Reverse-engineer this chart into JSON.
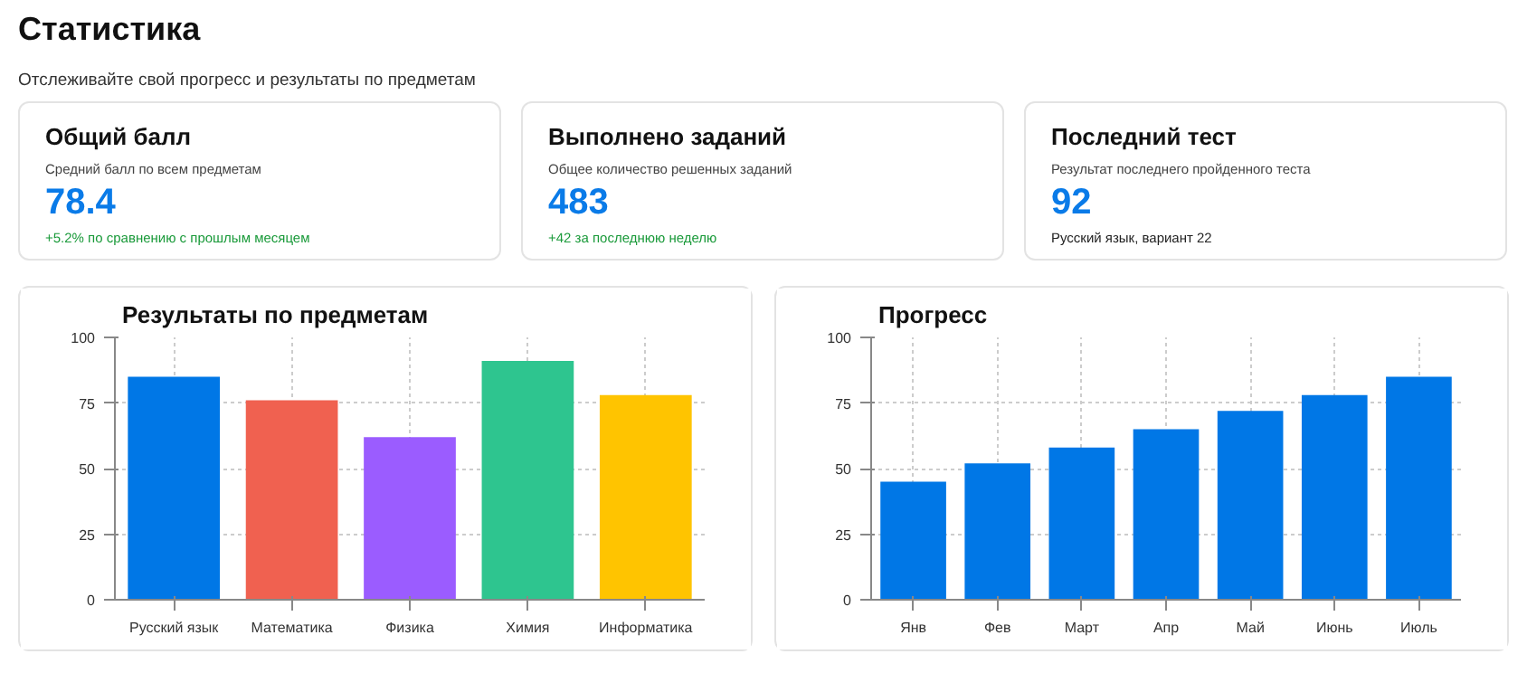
{
  "chart_data": [
    {
      "type": "other",
      "title": "Статистика",
      "subtitle": "Отслеживайте свой прогресс и результаты по предметам"
    },
    {
      "type": "other",
      "title": "Общий балл",
      "subtitle": "Средний балл по всем предметам",
      "annotations": [
        "78.4",
        "+5.2% по сравнению с прошлым месяцем"
      ]
    },
    {
      "type": "other",
      "title": "Выполнено заданий",
      "subtitle": "Общее количество решенных заданий",
      "annotations": [
        "483",
        "+42 за последнюю неделю"
      ]
    },
    {
      "type": "other",
      "title": "Последний тест",
      "subtitle": "Результат последнего пройденного теста",
      "annotations": [
        "92",
        "Русский язык, вариант 22"
      ]
    },
    {
      "type": "bar",
      "title": "Результаты по предметам",
      "categories": [
        "Русский язык",
        "Математика",
        "Физика",
        "Химия",
        "Информатика"
      ],
      "values": [
        85,
        76,
        62,
        91,
        78
      ],
      "colors": [
        "#0077e6",
        "#f06150",
        "#9b5cff",
        "#2ec58f",
        "#ffc400"
      ],
      "ylim": [
        0,
        100
      ],
      "yticks": [
        0,
        25,
        50,
        75,
        100
      ],
      "grid": true
    },
    {
      "type": "bar",
      "title": "Прогресс",
      "categories": [
        "Янв",
        "Фев",
        "Март",
        "Апр",
        "Май",
        "Июнь",
        "Июль"
      ],
      "values": [
        45,
        52,
        58,
        65,
        72,
        78,
        85
      ],
      "color": "#0077e6",
      "ylim": [
        0,
        100
      ],
      "yticks": [
        0,
        25,
        50,
        75,
        100
      ],
      "grid": true
    }
  ]
}
